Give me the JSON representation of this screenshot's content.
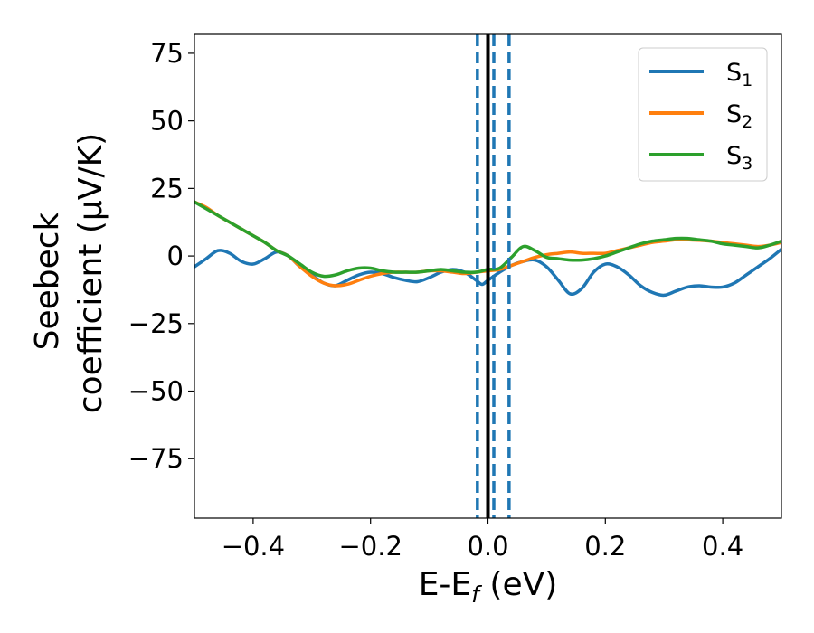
{
  "chart_data": {
    "type": "line",
    "xlabel": {
      "base": "E-E",
      "sub": "f",
      "unit": " (eV)"
    },
    "ylabel": {
      "line1": "Seebeck",
      "line2": "coefficient  (μV/K)"
    },
    "xlim": [
      -0.5,
      0.5
    ],
    "ylim": [
      -97,
      82
    ],
    "xticks": [
      -0.4,
      -0.2,
      0.0,
      0.2,
      0.4
    ],
    "xtick_labels": [
      "−0.4",
      "−0.2",
      "0.0",
      "0.2",
      "0.4"
    ],
    "yticks": [
      75,
      50,
      25,
      0,
      -25,
      -50,
      -75
    ],
    "ytick_labels": [
      "75",
      "50",
      "25",
      "0",
      "−25",
      "−50",
      "−75"
    ],
    "grid": false,
    "legend_position": "top-right",
    "series": [
      {
        "name": "S",
        "sub": "1",
        "color": "#1f77b4",
        "x": [
          -0.5,
          -0.48,
          -0.46,
          -0.44,
          -0.42,
          -0.4,
          -0.38,
          -0.36,
          -0.34,
          -0.32,
          -0.3,
          -0.28,
          -0.26,
          -0.24,
          -0.22,
          -0.2,
          -0.18,
          -0.16,
          -0.14,
          -0.12,
          -0.1,
          -0.08,
          -0.06,
          -0.04,
          -0.02,
          -0.01,
          0.0,
          0.02,
          0.04,
          0.06,
          0.08,
          0.1,
          0.12,
          0.14,
          0.16,
          0.18,
          0.2,
          0.22,
          0.24,
          0.26,
          0.28,
          0.3,
          0.32,
          0.34,
          0.36,
          0.38,
          0.4,
          0.42,
          0.44,
          0.46,
          0.48,
          0.5
        ],
        "y": [
          -4,
          -1,
          2,
          1,
          -2,
          -3,
          -1,
          1.5,
          0,
          -4,
          -7,
          -10,
          -11,
          -9,
          -7,
          -6,
          -6.5,
          -8,
          -9,
          -9.5,
          -8,
          -6,
          -5,
          -6,
          -9,
          -10.5,
          -9,
          -6,
          -3.5,
          -2,
          -1.5,
          -4,
          -9,
          -14,
          -12,
          -6,
          -3,
          -4,
          -7,
          -11,
          -13.5,
          -14.5,
          -13,
          -11.5,
          -11,
          -11.5,
          -11.5,
          -10,
          -7,
          -4,
          -1,
          2.5
        ]
      },
      {
        "name": "S",
        "sub": "2",
        "color": "#ff7f0e",
        "x": [
          -0.5,
          -0.48,
          -0.46,
          -0.44,
          -0.42,
          -0.4,
          -0.38,
          -0.36,
          -0.34,
          -0.32,
          -0.3,
          -0.28,
          -0.26,
          -0.24,
          -0.22,
          -0.2,
          -0.18,
          -0.16,
          -0.14,
          -0.12,
          -0.1,
          -0.08,
          -0.06,
          -0.04,
          -0.02,
          0.0,
          0.02,
          0.04,
          0.06,
          0.08,
          0.1,
          0.12,
          0.14,
          0.16,
          0.18,
          0.2,
          0.22,
          0.24,
          0.26,
          0.28,
          0.3,
          0.32,
          0.34,
          0.36,
          0.38,
          0.4,
          0.42,
          0.44,
          0.46,
          0.48,
          0.5
        ],
        "y": [
          20,
          18,
          15,
          12.5,
          10,
          7.5,
          5,
          2,
          0,
          -4,
          -7.5,
          -10,
          -11,
          -10.5,
          -9,
          -7.5,
          -6.5,
          -6,
          -6,
          -6,
          -5.5,
          -5.5,
          -6,
          -6.5,
          -6,
          -5.5,
          -5,
          -3.5,
          -2,
          -0.5,
          0.5,
          1,
          1.5,
          1,
          1,
          1,
          2,
          3,
          4,
          5,
          5.5,
          6,
          6,
          5.8,
          5.5,
          5,
          4.5,
          4,
          3.5,
          4,
          5
        ]
      },
      {
        "name": "S",
        "sub": "3",
        "color": "#2ca02c",
        "x": [
          -0.5,
          -0.48,
          -0.46,
          -0.44,
          -0.42,
          -0.4,
          -0.38,
          -0.36,
          -0.34,
          -0.32,
          -0.3,
          -0.28,
          -0.26,
          -0.24,
          -0.22,
          -0.2,
          -0.18,
          -0.16,
          -0.14,
          -0.12,
          -0.1,
          -0.08,
          -0.06,
          -0.04,
          -0.02,
          0.0,
          0.02,
          0.04,
          0.06,
          0.08,
          0.1,
          0.12,
          0.14,
          0.16,
          0.18,
          0.2,
          0.22,
          0.24,
          0.26,
          0.28,
          0.3,
          0.32,
          0.34,
          0.36,
          0.38,
          0.4,
          0.42,
          0.44,
          0.46,
          0.48,
          0.5
        ],
        "y": [
          20,
          17.5,
          15,
          12.5,
          10,
          7.5,
          5,
          2,
          0,
          -3,
          -6,
          -7.5,
          -7,
          -5.5,
          -4.5,
          -4.5,
          -5.5,
          -6,
          -6,
          -6,
          -5.5,
          -5,
          -5.5,
          -6,
          -6,
          -5,
          -4.5,
          -0.5,
          3.5,
          2,
          -0.5,
          -1,
          -1.5,
          -1.5,
          -1,
          0,
          1.5,
          3,
          4.5,
          5.5,
          6,
          6.5,
          6.5,
          6,
          5.5,
          4.5,
          4,
          3.5,
          3,
          4,
          5.5
        ]
      }
    ],
    "vlines": [
      {
        "x": -0.018,
        "color": "#1f77b4",
        "style": "dashed"
      },
      {
        "x": 0.0,
        "color": "#000000",
        "style": "solid"
      },
      {
        "x": 0.01,
        "color": "#1f77b4",
        "style": "dashed"
      },
      {
        "x": 0.036,
        "color": "#1f77b4",
        "style": "dashed"
      }
    ]
  }
}
